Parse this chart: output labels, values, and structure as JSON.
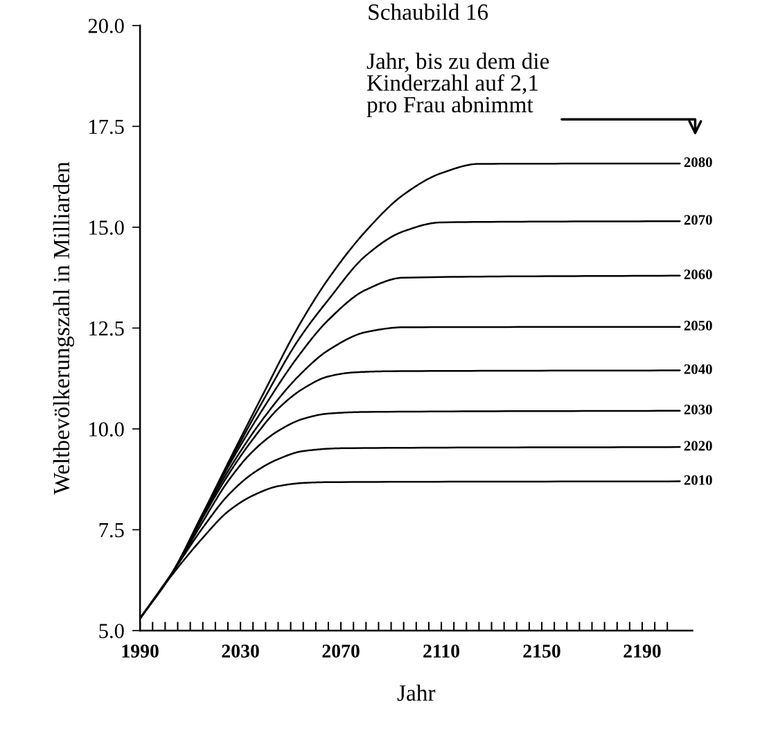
{
  "chart_data": {
    "type": "line",
    "title": "Schaubild 16",
    "xlabel": "Jahr",
    "ylabel": "Weltbevölkerungszahl in Milliarden",
    "annotations": [
      "Jahr, bis zu dem die\nKinderzahl auf 2,1\npro Frau abnimmt"
    ],
    "xlim": [
      1990,
      2210
    ],
    "ylim": [
      5.0,
      20.0
    ],
    "xticks": [
      1990,
      {
        "value": 1995,
        "label": null
      },
      {
        "value": 2000,
        "label": null
      },
      {
        "value": 2005,
        "label": null
      },
      {
        "value": 2010,
        "label": null
      },
      {
        "value": 2015,
        "label": null
      },
      {
        "value": 2020,
        "label": null
      },
      {
        "value": 2025,
        "label": null
      },
      2030,
      {
        "value": 2035,
        "label": null
      },
      {
        "value": 2040,
        "label": null
      },
      {
        "value": 2045,
        "label": null
      },
      {
        "value": 2050,
        "label": null
      },
      {
        "value": 2055,
        "label": null
      },
      {
        "value": 2060,
        "label": null
      },
      {
        "value": 2065,
        "label": null
      },
      2070,
      {
        "value": 2075,
        "label": null
      },
      {
        "value": 2080,
        "label": null
      },
      {
        "value": 2085,
        "label": null
      },
      {
        "value": 2090,
        "label": null
      },
      {
        "value": 2095,
        "label": null
      },
      {
        "value": 2100,
        "label": null
      },
      {
        "value": 2105,
        "label": null
      },
      2110,
      {
        "value": 2115,
        "label": null
      },
      {
        "value": 2120,
        "label": null
      },
      {
        "value": 2125,
        "label": null
      },
      {
        "value": 2130,
        "label": null
      },
      {
        "value": 2135,
        "label": null
      },
      {
        "value": 2140,
        "label": null
      },
      {
        "value": 2145,
        "label": null
      },
      2150,
      {
        "value": 2155,
        "label": null
      },
      {
        "value": 2160,
        "label": null
      },
      {
        "value": 2165,
        "label": null
      },
      {
        "value": 2170,
        "label": null
      },
      {
        "value": 2175,
        "label": null
      },
      {
        "value": 2180,
        "label": null
      },
      {
        "value": 2185,
        "label": null
      },
      2190,
      {
        "value": 2195,
        "label": null
      },
      {
        "value": 2200,
        "label": null
      }
    ],
    "yticks": [
      {
        "value": 5.0,
        "label": "5.0"
      },
      7.5,
      {
        "value": 10.0,
        "label": "10.0"
      },
      12.5,
      {
        "value": 15.0,
        "label": "15.0"
      },
      17.5,
      {
        "value": 20.0,
        "label": "20.0"
      }
    ],
    "grid": false,
    "legend": false,
    "marker": "none",
    "line_style": "solid",
    "series": [
      {
        "name": "2080",
        "color": "#000000",
        "x": [
          1990,
          2003,
          2015,
          2025,
          2039,
          2053,
          2065,
          2080,
          2095,
          2110,
          2125,
          2205
        ],
        "values": [
          5.3,
          6.45,
          7.9,
          9.15,
          10.86,
          12.53,
          13.72,
          14.91,
          15.81,
          16.34,
          16.57,
          16.58
        ]
      },
      {
        "name": "2070",
        "color": "#000000",
        "x": [
          1990,
          2003,
          2015,
          2025,
          2039,
          2053,
          2065,
          2080,
          2095,
          2110,
          2205
        ],
        "values": [
          5.3,
          6.45,
          7.9,
          9.1,
          10.7,
          12.2,
          13.2,
          14.3,
          14.9,
          15.12,
          15.15
        ]
      },
      {
        "name": "2060",
        "color": "#000000",
        "x": [
          1990,
          2003,
          2015,
          2025,
          2039,
          2053,
          2065,
          2080,
          2095,
          2205
        ],
        "values": [
          5.3,
          6.45,
          7.9,
          9.05,
          10.5,
          11.8,
          12.7,
          13.45,
          13.75,
          13.8
        ]
      },
      {
        "name": "2050",
        "color": "#000000",
        "x": [
          1990,
          2003,
          2015,
          2025,
          2039,
          2053,
          2065,
          2080,
          2095,
          2205
        ],
        "values": [
          5.3,
          6.45,
          7.85,
          8.95,
          10.25,
          11.3,
          11.95,
          12.4,
          12.52,
          12.53
        ]
      },
      {
        "name": "2040",
        "color": "#000000",
        "x": [
          1990,
          2003,
          2015,
          2025,
          2035,
          2045,
          2055,
          2065,
          2075,
          2090,
          2205
        ],
        "values": [
          5.3,
          6.45,
          7.8,
          8.85,
          9.75,
          10.5,
          11.0,
          11.3,
          11.4,
          11.43,
          11.45
        ]
      },
      {
        "name": "2030",
        "color": "#000000",
        "x": [
          1990,
          2003,
          2015,
          2025,
          2035,
          2045,
          2055,
          2065,
          2080,
          2205
        ],
        "values": [
          5.3,
          6.45,
          7.7,
          8.7,
          9.45,
          9.95,
          10.25,
          10.38,
          10.42,
          10.45
        ]
      },
      {
        "name": "2020",
        "color": "#000000",
        "x": [
          1990,
          2003,
          2015,
          2025,
          2035,
          2045,
          2055,
          2070,
          2205
        ],
        "values": [
          5.3,
          6.45,
          7.55,
          8.35,
          8.9,
          9.25,
          9.45,
          9.52,
          9.55
        ]
      },
      {
        "name": "2010",
        "color": "#000000",
        "x": [
          1990,
          2003,
          2015,
          2025,
          2035,
          2045,
          2055,
          2065,
          2205
        ],
        "values": [
          5.3,
          6.4,
          7.3,
          7.95,
          8.35,
          8.58,
          8.66,
          8.68,
          8.7
        ]
      }
    ]
  }
}
